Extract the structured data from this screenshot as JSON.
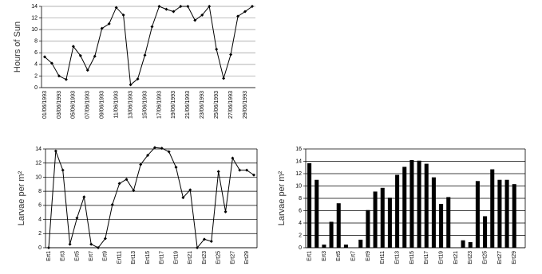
{
  "chart_data": [
    {
      "type": "line",
      "y_label": "Hours of Sun",
      "color": "#000000",
      "grid": true,
      "categories": [
        "01/06/1993",
        null,
        "03/06/1993",
        null,
        "05/06/1993",
        null,
        "07/06/1993",
        null,
        "09/06/1993",
        null,
        "11/06/1993",
        null,
        "13/06/1993",
        null,
        "15/06/1993",
        null,
        "17/06/1993",
        null,
        "19/06/1993",
        null,
        "21/06/1993",
        null,
        "23/06/1993",
        null,
        "25/06/1993",
        null,
        "27/06/1993",
        null,
        "29/06/1993",
        null
      ],
      "values": [
        5.3,
        4.2,
        2.0,
        1.4,
        7.1,
        5.5,
        3.0,
        5.4,
        10.2,
        11.0,
        13.8,
        12.5,
        0.5,
        1.5,
        5.6,
        10.5,
        14.0,
        13.5,
        13.1,
        14.0,
        14.0,
        11.6,
        12.5,
        14.0,
        6.6,
        1.6,
        5.7,
        12.3,
        13.1,
        14.0
      ],
      "ylim": [
        0,
        14
      ],
      "yticks": [
        0,
        2,
        4,
        6,
        8,
        10,
        12,
        14
      ]
    },
    {
      "type": "line",
      "y_label": "Larvae per m²",
      "color": "#000000",
      "grid": true,
      "categories": [
        "Ert1",
        null,
        "Ert3",
        null,
        "Ert5",
        null,
        "Ert7",
        null,
        "Ert9",
        null,
        "Ert11",
        null,
        "Ert13",
        null,
        "Ert15",
        null,
        "Ert17",
        null,
        "Ert19",
        null,
        "Ert21",
        null,
        "Ert23",
        null,
        "Ert25",
        null,
        "Ert27",
        null,
        "Ert29",
        null
      ],
      "values": [
        0,
        13.7,
        11.0,
        0.5,
        4.2,
        7.2,
        0.5,
        0,
        1.3,
        6.1,
        9.1,
        9.7,
        8.1,
        11.8,
        13.1,
        14.2,
        14.1,
        13.6,
        11.4,
        7.1,
        8.2,
        0,
        1.2,
        0.9,
        10.8,
        5.1,
        12.7,
        11.0,
        11.0,
        10.3
      ],
      "ylim": [
        0,
        14
      ],
      "yticks": [
        0,
        2,
        4,
        6,
        8,
        10,
        12,
        14
      ]
    },
    {
      "type": "bar",
      "y_label": "Larvae per m²",
      "color": "#000000",
      "grid": true,
      "categories": [
        "Ert1",
        null,
        "Ert3",
        null,
        "Ert5",
        null,
        "Ert7",
        null,
        "Ert9",
        null,
        "Ert11",
        null,
        "Ert13",
        null,
        "Ert15",
        null,
        "Ert17",
        null,
        "Ert19",
        null,
        "Ert21",
        null,
        "Ert23",
        null,
        "Ert25",
        null,
        "Ert27",
        null,
        "Ert29",
        null
      ],
      "values": [
        13.7,
        11.0,
        0.5,
        4.2,
        7.2,
        0.5,
        0,
        1.3,
        6.1,
        9.1,
        9.7,
        8.1,
        11.8,
        13.1,
        14.2,
        14.1,
        13.6,
        11.4,
        7.1,
        8.2,
        0,
        1.2,
        0.9,
        10.8,
        5.1,
        12.7,
        11.0,
        11.0,
        10.3,
        0
      ],
      "ylim": [
        0,
        16
      ],
      "yticks": [
        0,
        2,
        4,
        6,
        8,
        10,
        12,
        14,
        16
      ]
    }
  ]
}
